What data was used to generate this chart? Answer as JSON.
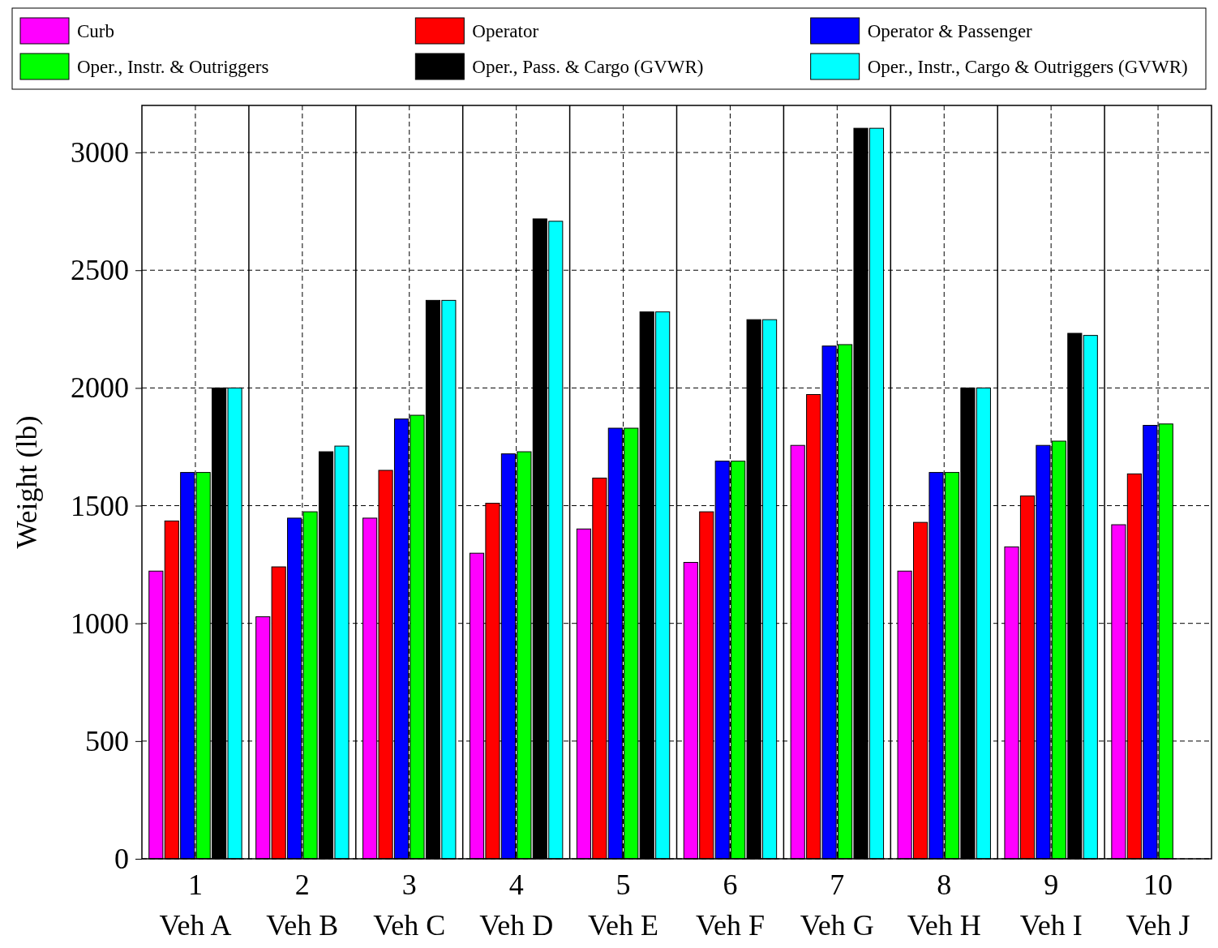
{
  "chart_data": {
    "type": "bar",
    "ylabel": "Weight (lb)",
    "categories": [
      "1\nVeh A",
      "2\nVeh B",
      "3\nVeh C",
      "4\nVeh D",
      "5\nVeh E",
      "6\nVeh F",
      "7\nVeh G",
      "8\nVeh H",
      "9\nVeh I",
      "10\nVeh J"
    ],
    "series": [
      {
        "name": "Curb",
        "color": "#ff00ff",
        "values": [
          1222,
          1028,
          1447,
          1298,
          1401,
          1259,
          1756,
          1222,
          1325,
          1419
        ]
      },
      {
        "name": "Operator",
        "color": "#ff0000",
        "values": [
          1435,
          1240,
          1650,
          1510,
          1617,
          1474,
          1972,
          1429,
          1541,
          1635
        ]
      },
      {
        "name": "Operator & Passenger",
        "color": "#0000ff",
        "values": [
          1641,
          1447,
          1868,
          1720,
          1829,
          1689,
          2178,
          1641,
          1756,
          1841
        ]
      },
      {
        "name": "Oper., Instr. & Outriggers",
        "color": "#00ff00",
        "values": [
          1641,
          1474,
          1884,
          1729,
          1829,
          1689,
          2184,
          1641,
          1774,
          1847
        ]
      },
      {
        "name": "Oper., Pass. & Cargo (GVWR)",
        "color": "#000000",
        "values": [
          2000,
          1729,
          2372,
          2718,
          2323,
          2290,
          3103,
          2000,
          2232,
          null
        ]
      },
      {
        "name": "Oper., Instr., Cargo & Outriggers (GVWR)",
        "color": "#00ffff",
        "values": [
          2000,
          1753,
          2372,
          2708,
          2323,
          2290,
          3103,
          2000,
          2223,
          null
        ]
      }
    ],
    "ylim": [
      0,
      3200
    ],
    "yticks": [
      0,
      500,
      1000,
      1500,
      2000,
      2500,
      3000
    ],
    "grid": true,
    "legend": "top"
  }
}
